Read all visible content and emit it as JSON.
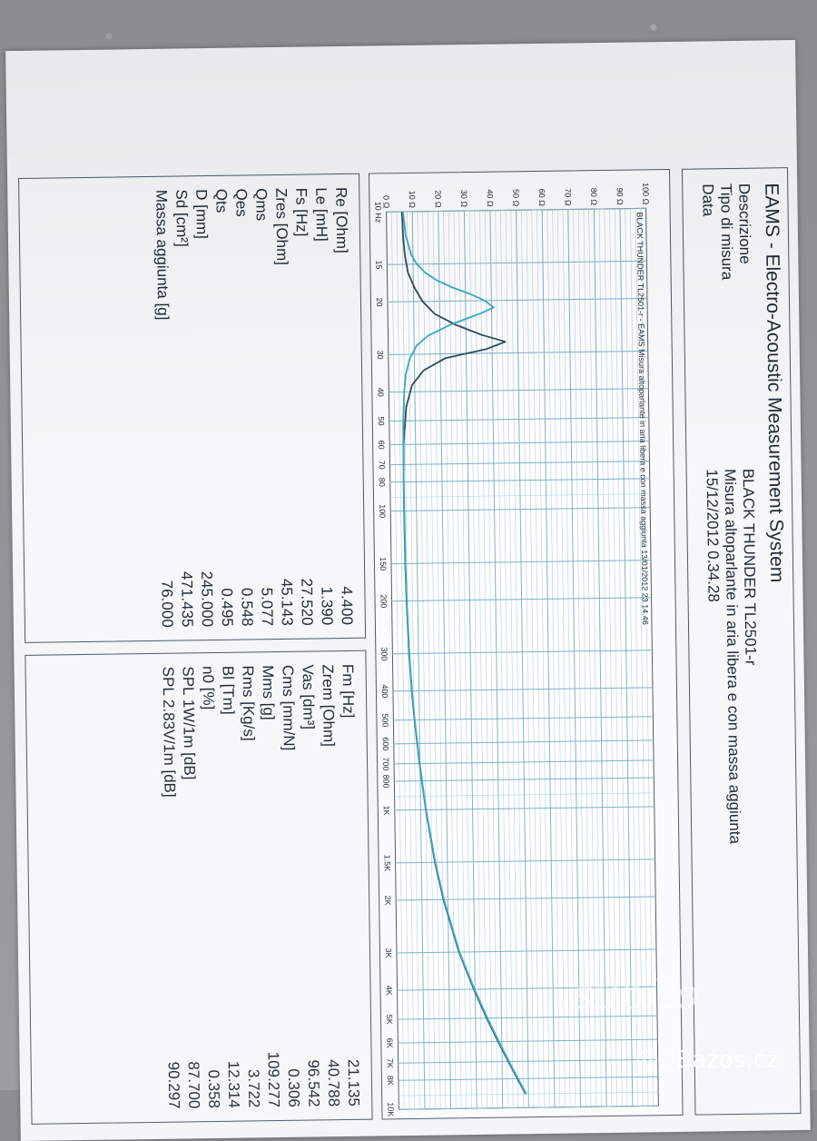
{
  "header": {
    "app_title": "EAMS - Electro-Acoustic Measurement System",
    "rows": [
      {
        "label": "Descrizione",
        "value": "BLACK THUNDER TL2501-r"
      },
      {
        "label": "Tipo di misura",
        "value": "Misura altoparlante in aria libera e con massa aggiunta"
      },
      {
        "label": "Data",
        "value": "15/12/2012 0.34.28"
      }
    ]
  },
  "chart_data": {
    "type": "line",
    "title": "BLACK THUNDER TL2501-r - EAMS Misura altoparlante in aria libera e con massa aggiunta 13/01/2012 23.14.46",
    "xlabel": "",
    "ylabel": "",
    "x_scale": "log",
    "xlim": [
      10,
      10000
    ],
    "ylim": [
      0,
      100
    ],
    "x_ticks": [
      {
        "value": 10,
        "label": "10 Hz"
      },
      {
        "value": 15,
        "label": "15"
      },
      {
        "value": 20,
        "label": "20"
      },
      {
        "value": 30,
        "label": "30"
      },
      {
        "value": 40,
        "label": "40"
      },
      {
        "value": 50,
        "label": "50"
      },
      {
        "value": 60,
        "label": "60"
      },
      {
        "value": 70,
        "label": "70"
      },
      {
        "value": 80,
        "label": "80"
      },
      {
        "value": 100,
        "label": "100"
      },
      {
        "value": 150,
        "label": "150"
      },
      {
        "value": 200,
        "label": "200"
      },
      {
        "value": 300,
        "label": "300"
      },
      {
        "value": 400,
        "label": "400"
      },
      {
        "value": 500,
        "label": "500"
      },
      {
        "value": 600,
        "label": "600"
      },
      {
        "value": 700,
        "label": "700"
      },
      {
        "value": 800,
        "label": "800"
      },
      {
        "value": 1000,
        "label": "1K"
      },
      {
        "value": 1500,
        "label": "1.5K"
      },
      {
        "value": 2000,
        "label": "2K"
      },
      {
        "value": 3000,
        "label": "3K"
      },
      {
        "value": 4000,
        "label": "4K"
      },
      {
        "value": 5000,
        "label": "5K"
      },
      {
        "value": 6000,
        "label": "6K"
      },
      {
        "value": 7000,
        "label": "7K"
      },
      {
        "value": 8000,
        "label": "8K"
      },
      {
        "value": 10000,
        "label": "10K"
      }
    ],
    "y_ticks": [
      {
        "value": 0,
        "label": "0 Ω"
      },
      {
        "value": 10,
        "label": "10 Ω"
      },
      {
        "value": 20,
        "label": "20 Ω"
      },
      {
        "value": 30,
        "label": "30 Ω"
      },
      {
        "value": 40,
        "label": "40 Ω"
      },
      {
        "value": 50,
        "label": "50 Ω"
      },
      {
        "value": 60,
        "label": "60 Ω"
      },
      {
        "value": 70,
        "label": "70 Ω"
      },
      {
        "value": 80,
        "label": "80 Ω"
      },
      {
        "value": 90,
        "label": "90 Ω"
      },
      {
        "value": 100,
        "label": "100 Ω"
      }
    ],
    "grid": true,
    "series": [
      {
        "color": "#2f4a5c",
        "x": [
          10,
          12,
          14,
          16,
          18,
          20,
          22,
          24,
          26,
          27.5,
          29,
          31,
          34,
          38,
          45,
          60,
          80,
          100,
          150,
          200,
          300,
          400,
          500,
          700,
          1000,
          1500,
          2000,
          3000,
          4000,
          5000,
          6000,
          7000,
          8000,
          9000
        ],
        "y": [
          6.0,
          6.3,
          6.9,
          8.0,
          10.5,
          13.5,
          18.0,
          26.0,
          36.0,
          45.1,
          38.0,
          22.0,
          13.5,
          9.0,
          6.6,
          5.4,
          5.2,
          5.2,
          5.4,
          5.7,
          6.4,
          7.2,
          8.1,
          9.8,
          12.0,
          15.2,
          18.3,
          24.0,
          29.5,
          34.3,
          38.6,
          42.4,
          45.8,
          48.9
        ]
      },
      {
        "color": "#3aa9c6",
        "x": [
          10,
          12,
          14,
          15,
          16,
          17,
          18,
          19,
          20,
          21.1,
          22,
          24,
          26,
          28,
          31,
          35,
          40,
          50,
          70,
          100,
          150,
          200,
          300,
          400,
          500,
          700,
          1000,
          1500,
          2000,
          3000,
          4000,
          5000,
          6000,
          7000,
          8000,
          9000
        ],
        "y": [
          6.4,
          7.3,
          9.4,
          11.5,
          14.5,
          19.0,
          25.0,
          32.0,
          37.5,
          40.8,
          36.0,
          24.0,
          15.5,
          11.0,
          8.2,
          6.6,
          5.9,
          5.4,
          5.2,
          5.3,
          5.5,
          5.8,
          6.5,
          7.3,
          8.2,
          9.9,
          12.1,
          15.4,
          18.5,
          24.2,
          29.8,
          34.6,
          38.9,
          42.7,
          46.1,
          49.2
        ]
      }
    ]
  },
  "params_left": [
    {
      "label": "Re [Ohm]",
      "value": "4.400"
    },
    {
      "label": "Le [mH]",
      "value": "1.390"
    },
    {
      "label": "Fs [Hz]",
      "value": "27.520"
    },
    {
      "label": "Zres [Ohm]",
      "value": "45.143"
    },
    {
      "label": "Qms",
      "value": "5.077"
    },
    {
      "label": "Qes",
      "value": "0.548"
    },
    {
      "label": "Qts",
      "value": "0.495"
    },
    {
      "label": "D [mm]",
      "value": "245.000"
    },
    {
      "label": "Sd [cm²]",
      "value": "471.435"
    },
    {
      "label": "Massa aggiunta [g]",
      "value": "76.000"
    }
  ],
  "params_right": [
    {
      "label": "Fm [Hz]",
      "value": "21.135"
    },
    {
      "label": "Zrem [Ohm]",
      "value": "40.788"
    },
    {
      "label": "Vas [dm³]",
      "value": "96.542"
    },
    {
      "label": "Cms [mm/N]",
      "value": "0.306"
    },
    {
      "label": "Mms [g]",
      "value": "109.277"
    },
    {
      "label": "Rms [Kg/s]",
      "value": "3.722"
    },
    {
      "label": "Bl [Tm]",
      "value": "12.314"
    },
    {
      "label": "n0 [%]",
      "value": "0.358"
    },
    {
      "label": "SPL 1W/1m [dB]",
      "value": "87.700"
    },
    {
      "label": "SPL 2.83V/1m [dB]",
      "value": "90.297"
    }
  ],
  "watermarks": {
    "subito": "subito",
    "bazos": "@( Bazos.cz"
  }
}
